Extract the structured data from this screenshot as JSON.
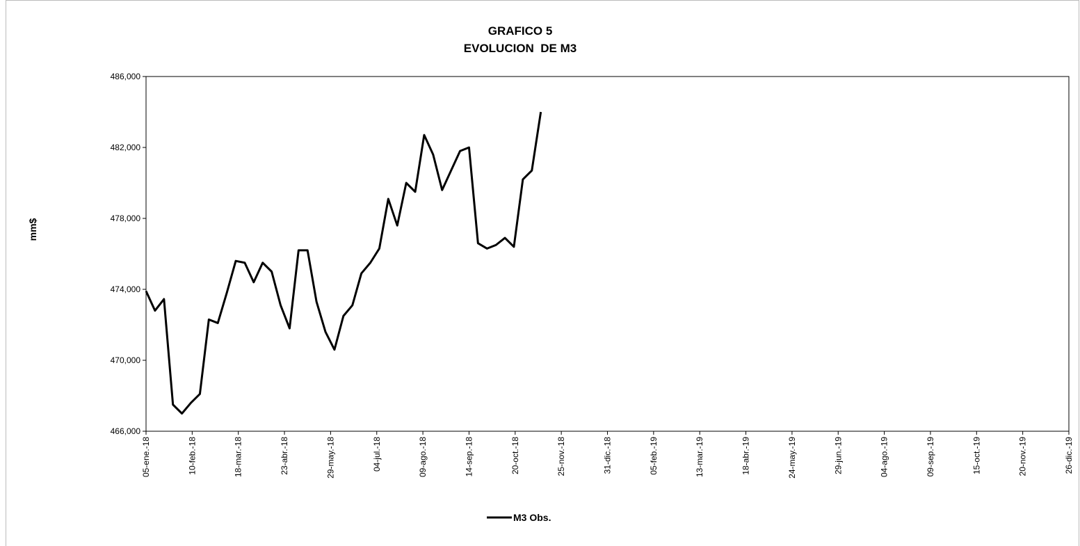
{
  "chart_data": {
    "type": "line",
    "title": "GRAFICO 5",
    "subtitle": "EVOLUCION  DE M3",
    "y_label": "mm$",
    "x": [
      "2018-01-05",
      "2018-01-12",
      "2018-01-19",
      "2018-01-26",
      "2018-02-02",
      "2018-02-09",
      "2018-02-16",
      "2018-02-23",
      "2018-03-02",
      "2018-03-09",
      "2018-03-16",
      "2018-03-23",
      "2018-03-30",
      "2018-04-06",
      "2018-04-13",
      "2018-04-20",
      "2018-04-27",
      "2018-05-04",
      "2018-05-11",
      "2018-05-18",
      "2018-05-25",
      "2018-06-01",
      "2018-06-08",
      "2018-06-15",
      "2018-06-22",
      "2018-06-29",
      "2018-07-06",
      "2018-07-13",
      "2018-07-20",
      "2018-07-27",
      "2018-08-03",
      "2018-08-10",
      "2018-08-17",
      "2018-08-24",
      "2018-08-31",
      "2018-09-07",
      "2018-09-14",
      "2018-09-21",
      "2018-09-28",
      "2018-10-05",
      "2018-10-12",
      "2018-10-19",
      "2018-10-26",
      "2018-11-02",
      "2018-11-09"
    ],
    "series": [
      {
        "name": "M3 Obs.",
        "color": "#000000",
        "values": [
          473900,
          472800,
          473450,
          467500,
          467000,
          467600,
          468100,
          472300,
          472100,
          473800,
          475600,
          475500,
          474400,
          475500,
          475000,
          473100,
          471800,
          476200,
          476200,
          473300,
          471600,
          470600,
          472500,
          473100,
          474900,
          475500,
          476300,
          479100,
          477600,
          480000,
          479500,
          482700,
          481600,
          479600,
          480700,
          481800,
          482000,
          476600,
          476300,
          476500,
          476900,
          476400,
          480200,
          480700,
          484000
        ]
      }
    ],
    "xlim": [
      "2018-01-05",
      "2019-12-26"
    ],
    "xticks": [
      {
        "value": "2018-01-05",
        "label": "05-ene.-18"
      },
      {
        "value": "2018-02-10",
        "label": "10-feb.-18"
      },
      {
        "value": "2018-03-18",
        "label": "18-mar.-18"
      },
      {
        "value": "2018-04-23",
        "label": "23-abr.-18"
      },
      {
        "value": "2018-05-29",
        "label": "29-may.-18"
      },
      {
        "value": "2018-07-04",
        "label": "04-jul.-18"
      },
      {
        "value": "2018-08-09",
        "label": "09-ago.-18"
      },
      {
        "value": "2018-09-14",
        "label": "14-sep.-18"
      },
      {
        "value": "2018-10-20",
        "label": "20-oct.-18"
      },
      {
        "value": "2018-11-25",
        "label": "25-nov.-18"
      },
      {
        "value": "2018-12-31",
        "label": "31-dic.-18"
      },
      {
        "value": "2019-02-05",
        "label": "05-feb.-19"
      },
      {
        "value": "2019-03-13",
        "label": "13-mar.-19"
      },
      {
        "value": "2019-04-18",
        "label": "18-abr.-19"
      },
      {
        "value": "2019-05-24",
        "label": "24-may.-19"
      },
      {
        "value": "2019-06-29",
        "label": "29-jun.-19"
      },
      {
        "value": "2019-08-04",
        "label": "04-ago.-19"
      },
      {
        "value": "2019-09-09",
        "label": "09-sep.-19"
      },
      {
        "value": "2019-10-15",
        "label": "15-oct.-19"
      },
      {
        "value": "2019-11-20",
        "label": "20-nov.-19"
      },
      {
        "value": "2019-12-26",
        "label": "26-dic.-19"
      }
    ],
    "ylim": [
      466000,
      486000
    ],
    "yticks": [
      {
        "value": 466000,
        "label": "466,000"
      },
      {
        "value": 470000,
        "label": "470,000"
      },
      {
        "value": 474000,
        "label": "474,000"
      },
      {
        "value": 478000,
        "label": "478,000"
      },
      {
        "value": 482000,
        "label": "482,000"
      },
      {
        "value": 486000,
        "label": "486,000"
      }
    ],
    "grid": false,
    "legend": "bottom"
  }
}
